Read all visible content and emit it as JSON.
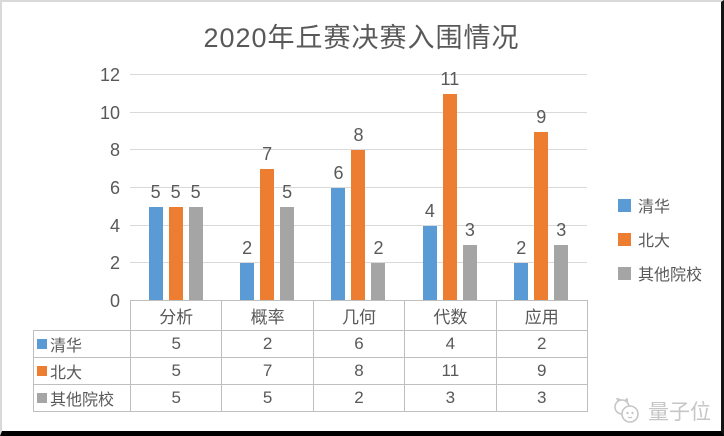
{
  "title": "2020年丘赛决赛入围情况",
  "chart_data": {
    "type": "bar",
    "title": "2020年丘赛决赛入围情况",
    "categories": [
      "分析",
      "概率",
      "几何",
      "代数",
      "应用"
    ],
    "series": [
      {
        "name": "清华",
        "color": "#5B9BD5",
        "values": [
          5,
          2,
          6,
          4,
          2
        ]
      },
      {
        "name": "北大",
        "color": "#ED7D31",
        "values": [
          5,
          7,
          8,
          11,
          9
        ]
      },
      {
        "name": "其他院校",
        "color": "#A5A5A5",
        "values": [
          5,
          5,
          2,
          3,
          3
        ]
      }
    ],
    "xlabel": "",
    "ylabel": "",
    "ylim": [
      0,
      12
    ],
    "yticks": [
      0,
      2,
      4,
      6,
      8,
      10,
      12
    ],
    "grid": true,
    "legend_position": "right",
    "data_labels": true,
    "data_table_shown": true
  },
  "colors": {
    "text": "#595959",
    "gridline": "#D9D9D9",
    "table_border": "#BFBFBF",
    "watermark": "#C6C6C6"
  },
  "watermark": {
    "label": "量子位"
  }
}
